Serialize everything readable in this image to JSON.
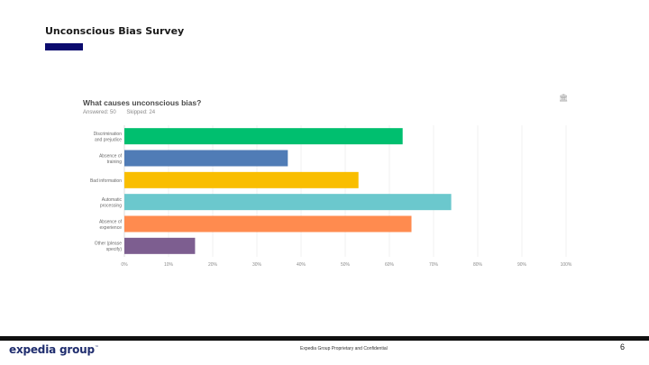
{
  "slide": {
    "title": "Unconscious Bias Survey",
    "accent_color": "#0b0b6e"
  },
  "chart_header": {
    "question": "What causes unconscious bias?",
    "answered": "Answered: 50",
    "skipped": "Skipped: 24",
    "export_icon": "library-icon"
  },
  "chart_data": {
    "type": "bar",
    "orientation": "horizontal",
    "categories": [
      [
        "Discrimination",
        "and prejudice"
      ],
      [
        "Absence of",
        "training"
      ],
      [
        "Bad information"
      ],
      [
        "Automatic",
        "processing"
      ],
      [
        "Absence of",
        "experience"
      ],
      [
        "Other (please",
        "specify)"
      ]
    ],
    "values": [
      63,
      37,
      53,
      74,
      65,
      16
    ],
    "colors": [
      "#00bf6f",
      "#507cb6",
      "#f9be00",
      "#6bc8cd",
      "#ff8b4f",
      "#7d5e90"
    ],
    "xticks": [
      "0%",
      "10%",
      "20%",
      "30%",
      "40%",
      "50%",
      "60%",
      "70%",
      "80%",
      "90%",
      "100%"
    ],
    "xlim": [
      0,
      100
    ],
    "grid": true
  },
  "footer": {
    "brand": "expedia group",
    "brand_mark": "™",
    "confidential": "Expedia Group Proprietary and Confidential",
    "page_number": "6"
  }
}
